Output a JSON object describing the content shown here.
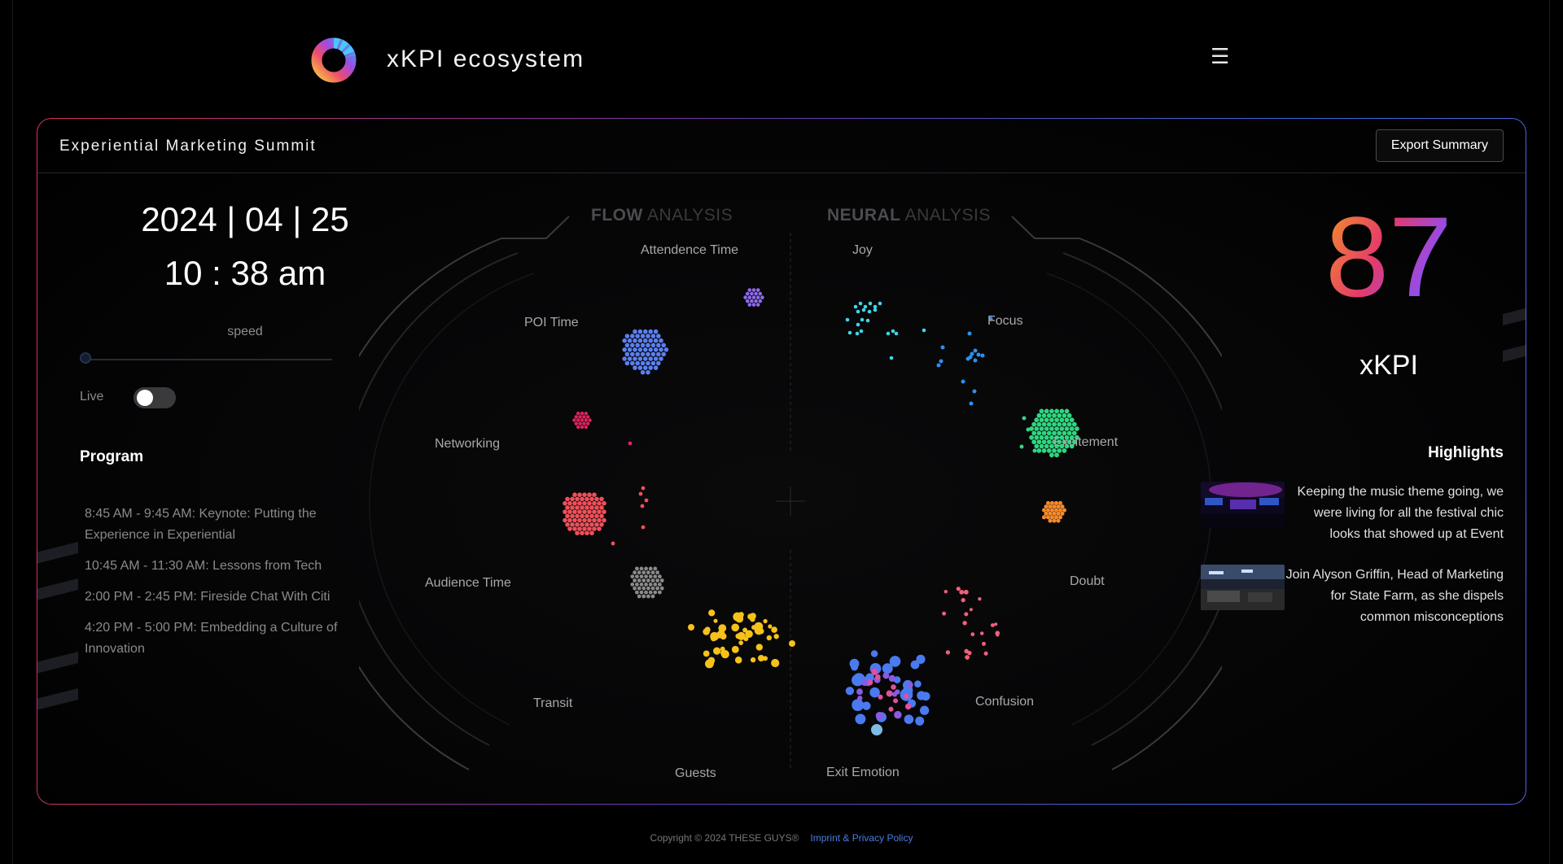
{
  "header": {
    "app_title": "xKPI ecosystem",
    "logo_icon": "ring-logo-icon",
    "menu_icon": "☰"
  },
  "panel": {
    "event_title": "Experiential Marketing Summit",
    "export_label": "Export Summary"
  },
  "clock": {
    "date": "2024 | 04 | 25",
    "time": "10 : 38 am",
    "speed_label": "speed",
    "speed_value": 0,
    "live_label": "Live",
    "live_on": false
  },
  "program": {
    "heading": "Program",
    "items": [
      "8:45 AM - 9:45 AM: Keynote: Putting the Experience in Experiential",
      "10:45 AM - 11:30 AM: Lessons from Tech",
      "2:00 PM - 2:45 PM: Fireside Chat With Citi",
      "4:20 PM - 5:00 PM: Embedding a Culture of Innovation"
    ]
  },
  "flow_analysis": {
    "title_bold": "FLOW",
    "title_rest": " ANALYSIS",
    "labels": {
      "attendence": "Attendence Time",
      "poi": "POI Time",
      "networking": "Networking",
      "audience": "Audience Time",
      "transit": "Transit",
      "guests": "Guests"
    }
  },
  "neural_analysis": {
    "title_bold": "NEURAL",
    "title_rest": " ANALYSIS",
    "labels": {
      "joy": "Joy",
      "focus": "Focus",
      "excitement": "Excitement",
      "doubt": "Doubt",
      "confusion": "Confusion",
      "exit": "Exit Emotion"
    }
  },
  "colors": {
    "poi": "#5b7ff0",
    "attendence": "#8e6ae8",
    "networking": "#e0245e",
    "audience": "#f0505a",
    "transit": "#8a8a8a",
    "guests": "#f6c21a",
    "joy": "#3fd6e8",
    "focus": "#2f8fef",
    "excitement": "#2fd680",
    "doubt": "#f58a2a",
    "confusion": "#f0607a",
    "exit": "#4a7af0"
  },
  "kpi": {
    "value": "87",
    "label": "xKPI"
  },
  "highlights": {
    "heading": "Highlights",
    "items": [
      "Keeping the music theme going, we were living for all the festival chic looks that showed up at Event",
      "Join Alyson Griffin, Head of Marketing for State Farm, as she dispels common misconceptions"
    ]
  },
  "footer": {
    "copyright": "Copyright © 2024 THESE GUYS®",
    "link": "Imprint & Privacy Policy"
  }
}
